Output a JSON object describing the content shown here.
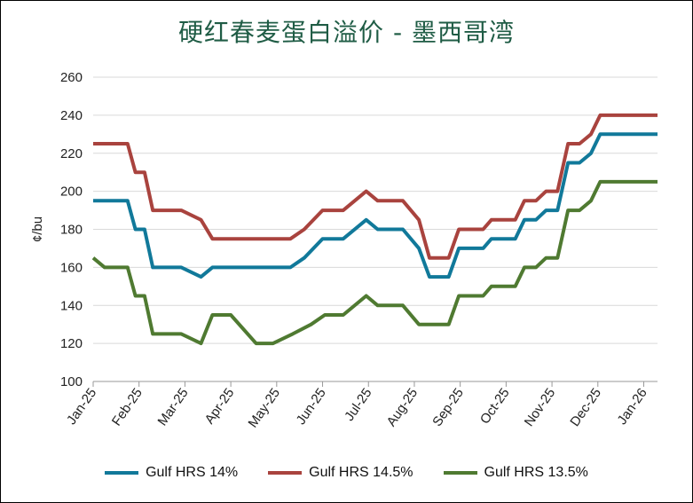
{
  "chart_data": {
    "type": "line",
    "title": "硬红春麦蛋白溢价 - 墨西哥湾",
    "ylabel": "¢/bu",
    "xlabel": "",
    "ylim": [
      100,
      260
    ],
    "yticks": [
      100,
      120,
      140,
      160,
      180,
      200,
      220,
      240,
      260
    ],
    "xlim": [
      0,
      12.3
    ],
    "xticks": [
      "Jan-25",
      "Feb-25",
      "Mar-25",
      "Apr-25",
      "May-25",
      "Jun-25",
      "Jul-25",
      "Aug-25",
      "Sep-25",
      "Oct-25",
      "Nov-25",
      "Dec-25",
      "Jan-26"
    ],
    "grid": "horizontal",
    "legend_position": "bottom",
    "series": [
      {
        "name": "Gulf HRS 14%",
        "color": "#11799a",
        "points": [
          [
            0,
            195
          ],
          [
            0.75,
            195
          ],
          [
            0.92,
            180
          ],
          [
            1.12,
            180
          ],
          [
            1.3,
            160
          ],
          [
            1.92,
            160
          ],
          [
            2.35,
            155
          ],
          [
            2.6,
            160
          ],
          [
            4.3,
            160
          ],
          [
            4.6,
            165
          ],
          [
            5.0,
            175
          ],
          [
            5.45,
            175
          ],
          [
            5.95,
            185
          ],
          [
            6.2,
            180
          ],
          [
            6.75,
            180
          ],
          [
            7.1,
            170
          ],
          [
            7.33,
            155
          ],
          [
            7.75,
            155
          ],
          [
            7.97,
            170
          ],
          [
            8.5,
            170
          ],
          [
            8.68,
            175
          ],
          [
            9.2,
            175
          ],
          [
            9.4,
            185
          ],
          [
            9.65,
            185
          ],
          [
            9.87,
            190
          ],
          [
            10.12,
            190
          ],
          [
            10.35,
            215
          ],
          [
            10.6,
            215
          ],
          [
            10.85,
            220
          ],
          [
            11.05,
            230
          ],
          [
            12.3,
            230
          ]
        ]
      },
      {
        "name": "Gulf HRS 14.5%",
        "color": "#a9433e",
        "points": [
          [
            0,
            225
          ],
          [
            0.75,
            225
          ],
          [
            0.92,
            210
          ],
          [
            1.12,
            210
          ],
          [
            1.3,
            190
          ],
          [
            1.92,
            190
          ],
          [
            2.35,
            185
          ],
          [
            2.6,
            175
          ],
          [
            4.3,
            175
          ],
          [
            4.6,
            180
          ],
          [
            5.0,
            190
          ],
          [
            5.45,
            190
          ],
          [
            5.95,
            200
          ],
          [
            6.2,
            195
          ],
          [
            6.75,
            195
          ],
          [
            7.1,
            185
          ],
          [
            7.33,
            165
          ],
          [
            7.75,
            165
          ],
          [
            7.97,
            180
          ],
          [
            8.5,
            180
          ],
          [
            8.68,
            185
          ],
          [
            9.2,
            185
          ],
          [
            9.4,
            195
          ],
          [
            9.65,
            195
          ],
          [
            9.87,
            200
          ],
          [
            10.12,
            200
          ],
          [
            10.35,
            225
          ],
          [
            10.6,
            225
          ],
          [
            10.85,
            230
          ],
          [
            11.05,
            240
          ],
          [
            12.3,
            240
          ]
        ]
      },
      {
        "name": "Gulf HRS 13.5%",
        "color": "#4f7a31",
        "points": [
          [
            0,
            165
          ],
          [
            0.25,
            160
          ],
          [
            0.75,
            160
          ],
          [
            0.92,
            145
          ],
          [
            1.12,
            145
          ],
          [
            1.3,
            125
          ],
          [
            1.92,
            125
          ],
          [
            2.35,
            120
          ],
          [
            2.6,
            135
          ],
          [
            3.0,
            135
          ],
          [
            3.55,
            120
          ],
          [
            3.92,
            120
          ],
          [
            4.35,
            125
          ],
          [
            4.75,
            130
          ],
          [
            5.05,
            135
          ],
          [
            5.45,
            135
          ],
          [
            5.95,
            145
          ],
          [
            6.2,
            140
          ],
          [
            6.75,
            140
          ],
          [
            7.1,
            130
          ],
          [
            7.75,
            130
          ],
          [
            7.97,
            145
          ],
          [
            8.5,
            145
          ],
          [
            8.68,
            150
          ],
          [
            9.2,
            150
          ],
          [
            9.4,
            160
          ],
          [
            9.65,
            160
          ],
          [
            9.87,
            165
          ],
          [
            10.12,
            165
          ],
          [
            10.35,
            190
          ],
          [
            10.6,
            190
          ],
          [
            10.85,
            195
          ],
          [
            11.05,
            205
          ],
          [
            12.3,
            205
          ]
        ]
      }
    ]
  }
}
